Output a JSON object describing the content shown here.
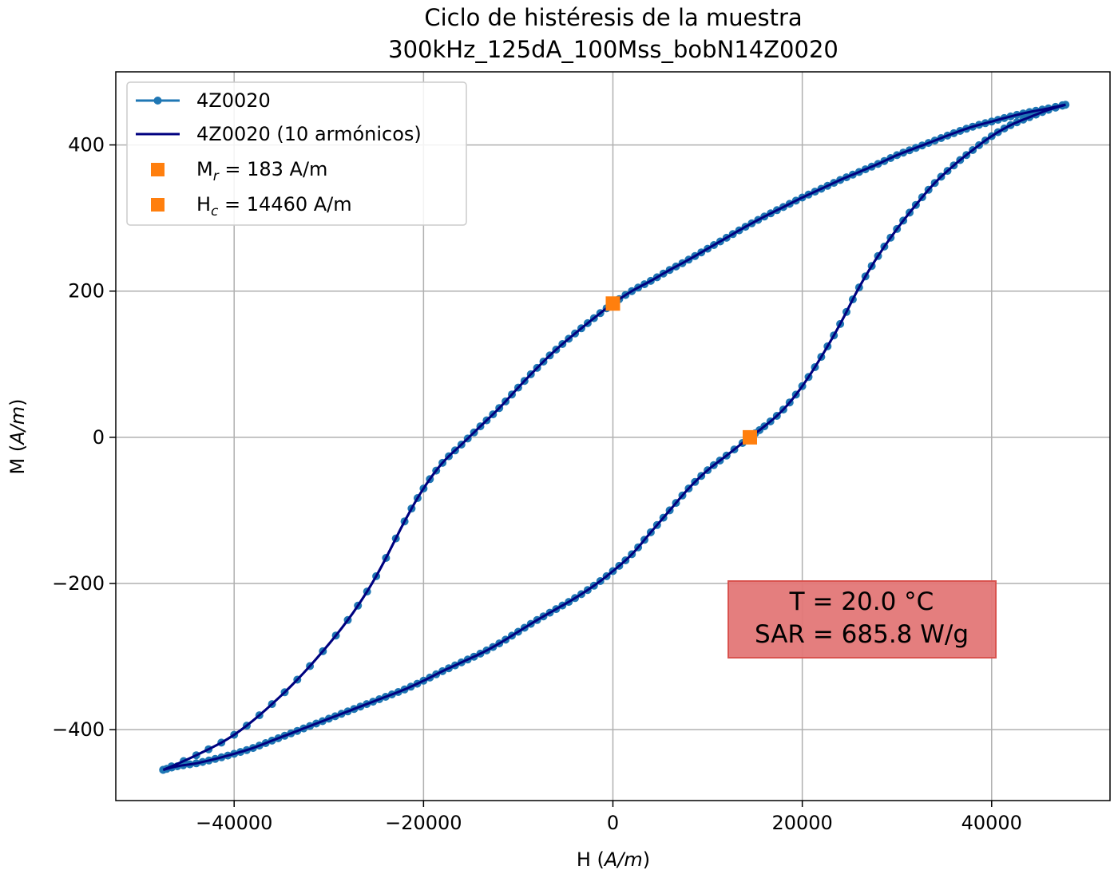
{
  "chart_data": {
    "type": "line",
    "title_line1": "Ciclo de histéresis de la muestra",
    "title_line2": "300kHz_125dA_100Mss_bobN14Z0020",
    "xlabel_main": "H (",
    "xlabel_unit": "A/m",
    "xlabel_close": ")",
    "ylabel_main": "M (",
    "ylabel_unit": "A/m",
    "ylabel_close": ")",
    "xlim": [
      -52500,
      52500
    ],
    "ylim": [
      -497,
      500
    ],
    "xticks": [
      -40000,
      -20000,
      0,
      20000,
      40000
    ],
    "xtick_labels": [
      "−40000",
      "−20000",
      "0",
      "20000",
      "40000"
    ],
    "yticks": [
      -400,
      -200,
      0,
      200,
      400
    ],
    "ytick_labels": [
      "−400",
      "−200",
      "0",
      "200",
      "400"
    ],
    "grid": true,
    "legend_position": "top-left",
    "legend": {
      "data_label": "4Z0020",
      "fit_label": "4Z0020 (10 armónicos)",
      "mr_label_main": "M",
      "mr_label_sub": "r",
      "mr_label_rest": " = 183 A/m",
      "hc_label_main": "H",
      "hc_label_sub": "c",
      "hc_label_rest": " = 14460 A/m"
    },
    "series": [
      {
        "name": "4Z0020",
        "style": "line-markers",
        "color": "#1f77b4",
        "upper_branch": [
          [
            -47500,
            -455
          ],
          [
            -44000,
            -435
          ],
          [
            -40000,
            -407
          ],
          [
            -36000,
            -365
          ],
          [
            -32000,
            -313
          ],
          [
            -28000,
            -250
          ],
          [
            -25000,
            -190
          ],
          [
            -22000,
            -115
          ],
          [
            -20000,
            -70
          ],
          [
            -18000,
            -35
          ],
          [
            -16000,
            -10
          ],
          [
            -14000,
            15
          ],
          [
            -12000,
            40
          ],
          [
            -10000,
            68
          ],
          [
            -8000,
            95
          ],
          [
            -6000,
            120
          ],
          [
            -4000,
            142
          ],
          [
            -2000,
            163
          ],
          [
            0,
            183
          ],
          [
            2000,
            200
          ],
          [
            4000,
            214
          ],
          [
            6000,
            229
          ],
          [
            8000,
            243
          ],
          [
            10000,
            258
          ],
          [
            12000,
            273
          ],
          [
            14000,
            288
          ],
          [
            16000,
            302
          ],
          [
            18000,
            315
          ],
          [
            20000,
            328
          ],
          [
            22000,
            340
          ],
          [
            24000,
            352
          ],
          [
            26000,
            363
          ],
          [
            28000,
            374
          ],
          [
            30000,
            386
          ],
          [
            32000,
            396
          ],
          [
            34000,
            406
          ],
          [
            36000,
            416
          ],
          [
            38000,
            425
          ],
          [
            40000,
            432
          ],
          [
            42000,
            439
          ],
          [
            44000,
            445
          ],
          [
            46000,
            450
          ],
          [
            47800,
            455
          ]
        ],
        "lower_branch": [
          [
            47800,
            455
          ],
          [
            46000,
            448
          ],
          [
            44000,
            438
          ],
          [
            42000,
            427
          ],
          [
            40000,
            412
          ],
          [
            38000,
            393
          ],
          [
            36000,
            372
          ],
          [
            34000,
            348
          ],
          [
            32000,
            318
          ],
          [
            30000,
            285
          ],
          [
            28000,
            248
          ],
          [
            26000,
            205
          ],
          [
            24000,
            155
          ],
          [
            22000,
            110
          ],
          [
            20000,
            70
          ],
          [
            18000,
            38
          ],
          [
            16000,
            15
          ],
          [
            14460,
            0
          ],
          [
            12000,
            -25
          ],
          [
            10000,
            -45
          ],
          [
            8000,
            -70
          ],
          [
            6000,
            -100
          ],
          [
            4000,
            -130
          ],
          [
            2000,
            -160
          ],
          [
            0,
            -183
          ],
          [
            -2000,
            -203
          ],
          [
            -4000,
            -220
          ],
          [
            -6000,
            -235
          ],
          [
            -8000,
            -250
          ],
          [
            -10000,
            -266
          ],
          [
            -12000,
            -282
          ],
          [
            -14000,
            -296
          ],
          [
            -16000,
            -308
          ],
          [
            -18000,
            -320
          ],
          [
            -20000,
            -333
          ],
          [
            -22000,
            -345
          ],
          [
            -24000,
            -355
          ],
          [
            -26000,
            -365
          ],
          [
            -28000,
            -375
          ],
          [
            -30000,
            -385
          ],
          [
            -32000,
            -395
          ],
          [
            -34000,
            -405
          ],
          [
            -36000,
            -415
          ],
          [
            -38000,
            -425
          ],
          [
            -40000,
            -433
          ],
          [
            -42000,
            -440
          ],
          [
            -44000,
            -446
          ],
          [
            -46000,
            -450
          ],
          [
            -47500,
            -455
          ]
        ]
      },
      {
        "name": "4Z0020 (10 armónicos)",
        "style": "line",
        "color": "#00007f"
      }
    ],
    "special_points": [
      {
        "name": "Mr",
        "x": 0,
        "y": 183,
        "color": "#ff7f0e"
      },
      {
        "name": "Hc",
        "x": 14460,
        "y": 0,
        "color": "#ff7f0e"
      }
    ],
    "annotation": {
      "line1": "T = 20.0 °C",
      "line2": "SAR = 685.8 W/g",
      "bg_color": "#e37777",
      "border_color": "#d9534f",
      "x_center": 26000,
      "y_center": -250
    }
  }
}
